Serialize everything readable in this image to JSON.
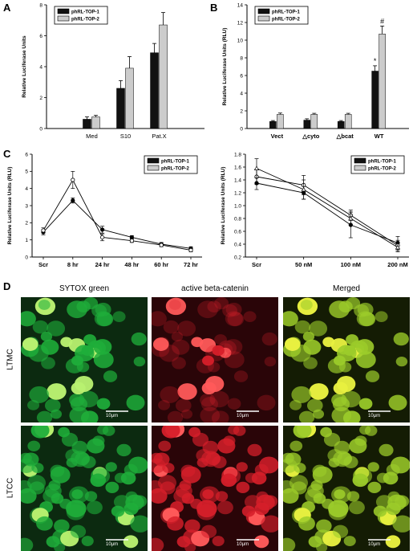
{
  "panels": {
    "A": "A",
    "B": "B",
    "C": "C",
    "D": "D"
  },
  "chart_data": [
    {
      "id": "A",
      "type": "bar",
      "categories": [
        "Med",
        "S10",
        "Pat.X"
      ],
      "series": [
        {
          "name": "phRL-TOP-1",
          "values": [
            0.6,
            2.6,
            4.9
          ],
          "errors": [
            0.15,
            0.5,
            0.6
          ],
          "color": "#111111"
        },
        {
          "name": "phRL-TOP-2",
          "values": [
            0.75,
            3.9,
            6.7
          ],
          "errors": [
            0.1,
            0.75,
            0.8
          ],
          "color": "#cccccc"
        }
      ],
      "ylabel": "Relative Luciferase Units",
      "ylim": [
        0,
        8
      ],
      "yticks": [
        0,
        2,
        4,
        6,
        8
      ],
      "legend": "top-left"
    },
    {
      "id": "B",
      "type": "bar",
      "categories": [
        "Vect",
        "△cyto",
        "△bcat",
        "WT"
      ],
      "series": [
        {
          "name": "phRL-TOP-1",
          "values": [
            0.8,
            0.95,
            0.8,
            6.5
          ],
          "errors": [
            0.1,
            0.15,
            0.1,
            0.6
          ],
          "color": "#111111"
        },
        {
          "name": "phRL-TOP-2",
          "values": [
            1.6,
            1.6,
            1.6,
            10.7
          ],
          "errors": [
            0.15,
            0.12,
            0.12,
            0.9
          ],
          "color": "#cccccc"
        }
      ],
      "annotations": [
        {
          "category": "WT",
          "series": 0,
          "text": "*"
        },
        {
          "category": "WT",
          "series": 1,
          "text": "#"
        }
      ],
      "ylabel": "Relative Luciferase Units (RLU)",
      "ylim": [
        0,
        14
      ],
      "yticks": [
        0,
        2,
        4,
        6,
        8,
        10,
        12,
        14
      ],
      "legend": "top-left"
    },
    {
      "id": "C1",
      "type": "line",
      "categories": [
        "Scr",
        "8 hr",
        "24 hr",
        "48 hr",
        "60 hr",
        "72 hr"
      ],
      "series": [
        {
          "name": "phRL-TOP-1",
          "values": [
            1.45,
            3.3,
            1.6,
            1.15,
            0.75,
            0.5
          ],
          "errors": [
            0.15,
            0.15,
            0.2,
            0.1,
            0.1,
            0.1
          ],
          "marker": "filled"
        },
        {
          "name": "phRL-TOP-2",
          "values": [
            1.55,
            4.5,
            1.15,
            0.95,
            0.7,
            0.4
          ],
          "errors": [
            0.15,
            0.5,
            0.2,
            0.1,
            0.1,
            0.1
          ],
          "marker": "open"
        }
      ],
      "ylabel": "Relative Luciferase Units (RLU)",
      "ylim": [
        0,
        6
      ],
      "yticks": [
        0,
        1,
        2,
        3,
        4,
        5,
        6
      ],
      "legend": "top-right"
    },
    {
      "id": "C2",
      "type": "line",
      "categories": [
        "Scr",
        "50 nM",
        "100 nM",
        "200 nM"
      ],
      "series": [
        {
          "name": "phRL-TOP-1",
          "values": [
            1.35,
            1.2,
            0.7,
            0.42
          ],
          "errors": [
            0.1,
            0.1,
            0.2,
            0.1
          ],
          "marker": "filled"
        },
        {
          "name": "phRL-TOP-2",
          "values": [
            1.45,
            1.32,
            0.85,
            0.38
          ],
          "errors": [
            0.12,
            0.15,
            0.08,
            0.08
          ],
          "marker": "open"
        },
        {
          "name": "",
          "values": [
            1.58,
            1.25,
            0.8,
            0.35
          ],
          "errors": [
            0.15,
            0.15,
            0.1,
            0.07
          ],
          "marker": "open-triangle"
        }
      ],
      "ylabel": "Relative Luciferase Units (RLU)",
      "ylim": [
        0.2,
        1.8
      ],
      "yticks": [
        0.2,
        0.4,
        0.6,
        0.8,
        1.0,
        1.2,
        1.4,
        1.6,
        1.8
      ],
      "legend": "top-right"
    }
  ],
  "micrographs": {
    "columns": [
      "SYTOX green",
      "active beta-catenin",
      "Merged"
    ],
    "rows": [
      "LTMC",
      "LTCC"
    ],
    "scale": "10μm"
  },
  "colors": {
    "green": "#1fae3a",
    "red": "#d61f2a",
    "merged": "#9ccc2a"
  }
}
